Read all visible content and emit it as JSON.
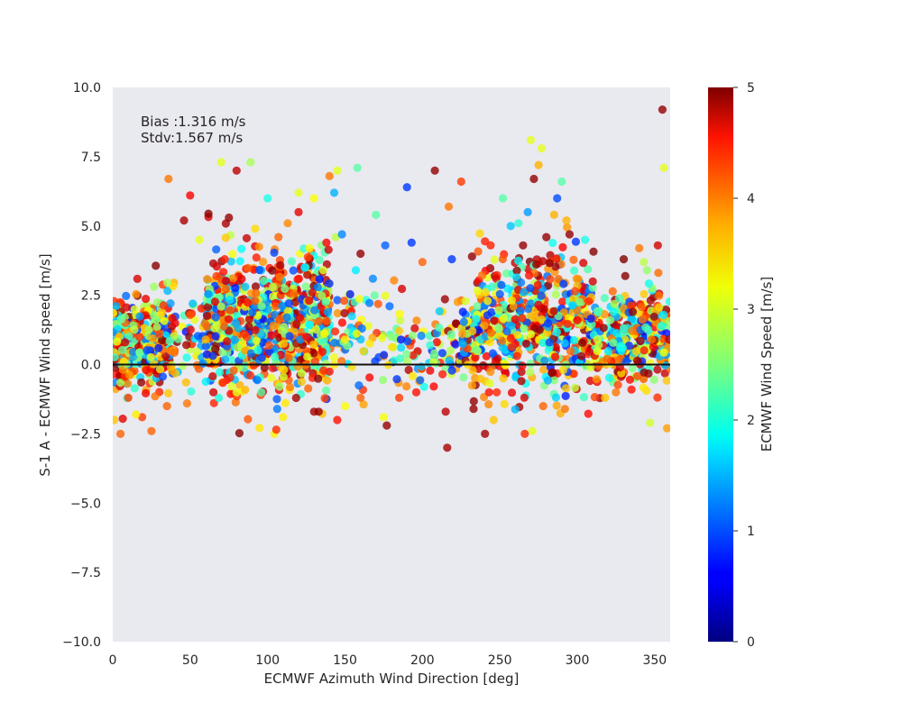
{
  "chart_data": {
    "type": "scatter",
    "xlabel": "ECMWF Azimuth Wind Direction [deg]",
    "ylabel": "S-1 A - ECMWF Wind speed [m/s]",
    "xlim": [
      0,
      360
    ],
    "ylim": [
      -10,
      10
    ],
    "x_ticks": [
      "0",
      "50",
      "100",
      "150",
      "200",
      "250",
      "300",
      "350"
    ],
    "y_ticks": [
      "10.0",
      "7.5",
      "5.0",
      "2.5",
      "0.0",
      "−2.5",
      "−5.0",
      "−7.5",
      "−10.0"
    ],
    "grid": false,
    "background": "#e9e9f0",
    "zero_line": 0,
    "annotations": [
      "Bias :1.316 m/s",
      "Stdv:1.567 m/s"
    ],
    "colorbar": {
      "label": "ECMWF Wind Speed [m/s]",
      "range": [
        0,
        5
      ],
      "ticks": [
        "0",
        "1",
        "2",
        "3",
        "4",
        "5"
      ],
      "colormap": "jet"
    },
    "point_count_estimate": 2600,
    "summary": {
      "bias": 1.316,
      "stdv": 1.567
    },
    "points": [
      [
        355,
        9.2,
        4.9
      ],
      [
        356,
        7.1,
        3.0
      ],
      [
        270,
        8.1,
        3.0
      ],
      [
        277,
        7.8,
        3.0
      ],
      [
        275,
        7.2,
        3.5
      ],
      [
        208,
        7.0,
        4.9
      ],
      [
        70,
        7.3,
        3.0
      ],
      [
        89,
        7.3,
        2.7
      ],
      [
        80,
        7.0,
        4.7
      ],
      [
        36,
        6.7,
        3.8
      ],
      [
        50,
        6.1,
        4.4
      ],
      [
        190,
        6.4,
        0.9
      ],
      [
        140,
        6.8,
        3.8
      ],
      [
        145,
        7.0,
        3.0
      ],
      [
        158,
        7.1,
        2.3
      ],
      [
        225,
        6.6,
        4.1
      ],
      [
        272,
        6.7,
        4.9
      ],
      [
        290,
        6.6,
        2.3
      ],
      [
        287,
        6.0,
        1.0
      ],
      [
        252,
        6.0,
        2.3
      ],
      [
        100,
        6.0,
        2.0
      ],
      [
        120,
        6.2,
        3.0
      ],
      [
        130,
        6.0,
        3.1
      ],
      [
        143,
        6.2,
        1.5
      ],
      [
        170,
        5.4,
        2.3
      ],
      [
        217,
        5.7,
        3.8
      ],
      [
        293,
        5.2,
        3.5
      ],
      [
        305,
        4.5,
        2.0
      ],
      [
        295,
        4.7,
        4.9
      ],
      [
        310,
        3.0,
        4.6
      ],
      [
        330,
        3.8,
        5.0
      ],
      [
        343,
        3.7,
        2.8
      ],
      [
        345,
        3.4,
        2.6
      ],
      [
        352,
        4.3,
        4.6
      ],
      [
        340,
        4.2,
        3.8
      ],
      [
        358,
        -2.3,
        3.6
      ],
      [
        347,
        -2.1,
        2.9
      ],
      [
        271,
        -2.4,
        3.0
      ],
      [
        292,
        -1.6,
        3.8
      ],
      [
        278,
        -1.5,
        3.9
      ],
      [
        216,
        -3.0,
        4.8
      ],
      [
        177,
        -2.2,
        4.9
      ],
      [
        175,
        -1.9,
        3.1
      ],
      [
        145,
        -2.0,
        4.3
      ],
      [
        130,
        -1.7,
        4.8
      ],
      [
        133,
        -1.7,
        4.9
      ],
      [
        110,
        -1.9,
        3.2
      ],
      [
        5,
        -2.5,
        3.9
      ],
      [
        25,
        -2.4,
        3.9
      ],
      [
        19,
        -1.9,
        4.1
      ],
      [
        1,
        -2.0,
        3.4
      ],
      [
        246,
        -2.0,
        3.4
      ],
      [
        233,
        -1.6,
        4.9
      ],
      [
        248,
        -1.0,
        4.2
      ],
      [
        243,
        -1.0,
        4.3
      ],
      [
        176,
        4.3,
        1.1
      ],
      [
        193,
        4.4,
        0.9
      ],
      [
        200,
        3.7,
        3.9
      ],
      [
        219,
        3.8,
        0.9
      ],
      [
        232,
        3.9,
        4.9
      ],
      [
        160,
        4.0,
        4.9
      ],
      [
        144,
        4.6,
        2.8
      ],
      [
        148,
        4.7,
        1.3
      ],
      [
        168,
        3.1,
        1.3
      ],
      [
        157,
        3.4,
        1.8
      ],
      [
        46,
        5.2,
        4.8
      ],
      [
        56,
        4.5,
        3.0
      ],
      [
        75,
        5.3,
        4.9
      ],
      [
        92,
        4.9,
        3.3
      ],
      [
        107,
        4.6,
        3.9
      ],
      [
        113,
        5.1,
        3.7
      ],
      [
        120,
        5.5,
        4.5
      ],
      [
        127,
        4.2,
        3.1
      ],
      [
        138,
        4.4,
        4.4
      ],
      [
        265,
        4.3,
        4.9
      ],
      [
        257,
        5.0,
        1.6
      ],
      [
        262,
        5.1,
        2.1
      ],
      [
        268,
        5.5,
        1.4
      ],
      [
        280,
        4.6,
        4.9
      ],
      [
        285,
        5.4,
        3.5
      ],
      [
        215,
        -1.7,
        4.7
      ],
      [
        196,
        -1.0,
        4.3
      ],
      [
        185,
        -1.2,
        4.1
      ],
      [
        160,
        -1.2,
        3.9
      ],
      [
        150,
        -1.5,
        3.1
      ],
      [
        96,
        -1.0,
        2.3
      ],
      [
        80,
        -1.0,
        3.0
      ],
      [
        65,
        -1.0,
        4.6
      ],
      [
        48,
        -1.4,
        3.8
      ],
      [
        35,
        -1.5,
        3.9
      ],
      [
        10,
        -1.2,
        4.1
      ],
      [
        15,
        -1.8,
        3.2
      ],
      [
        318,
        -1.2,
        3.4
      ],
      [
        325,
        -1.0,
        3.8
      ],
      [
        335,
        -0.9,
        4.3
      ],
      [
        313,
        0.9,
        2.9
      ],
      [
        300,
        1.6,
        4.4
      ],
      [
        282,
        0.8,
        1.0
      ],
      [
        240,
        1.4,
        3.6
      ],
      [
        205,
        0.7,
        2.1
      ],
      [
        180,
        1.0,
        2.6
      ],
      [
        150,
        0.9,
        3.2
      ],
      [
        125,
        1.0,
        4.3
      ],
      [
        85,
        1.1,
        4.2
      ],
      [
        60,
        0.9,
        3.5
      ],
      [
        30,
        1.1,
        4.0
      ],
      [
        8,
        0.8,
        4.6
      ],
      [
        348,
        0.9,
        3.9
      ],
      [
        330,
        1.3,
        2.0
      ],
      [
        270,
        1.1,
        3.0
      ]
    ]
  }
}
